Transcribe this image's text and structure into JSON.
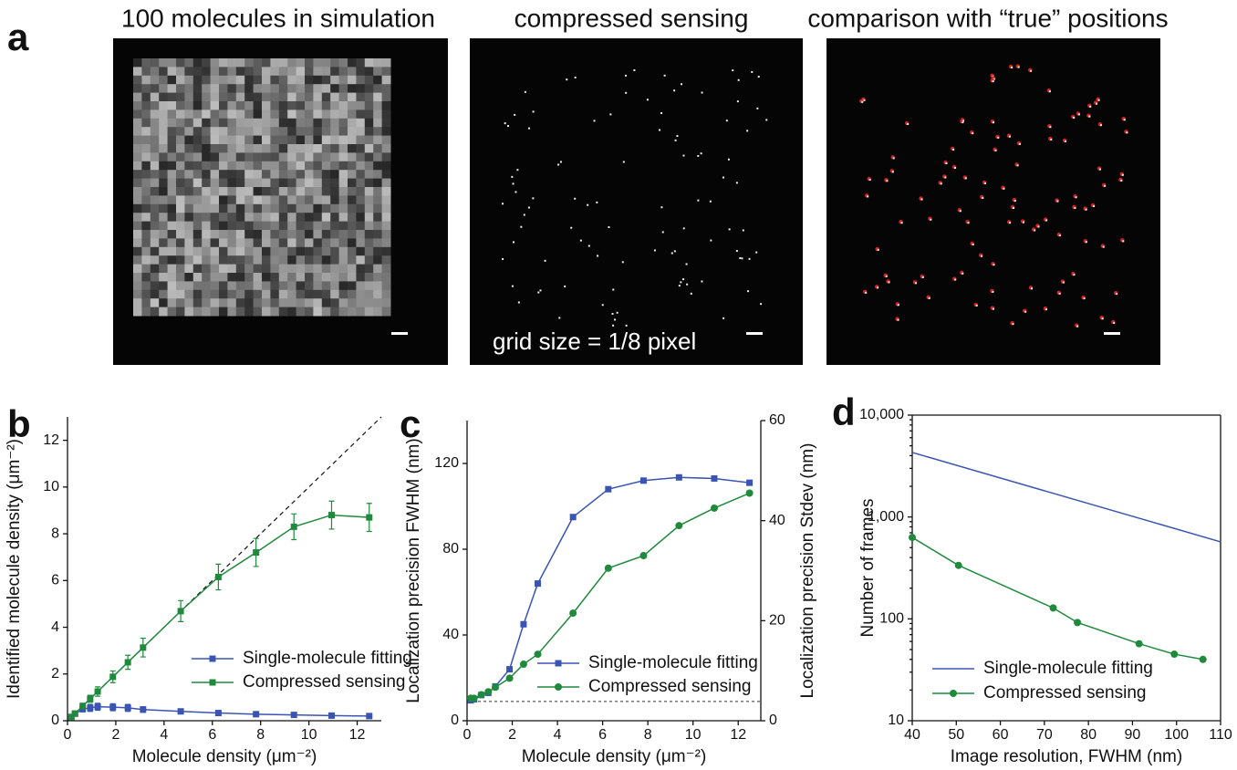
{
  "panel_labels": [
    "a",
    "b",
    "c",
    "d"
  ],
  "images": [
    {
      "title": "100 molecules in simulation"
    },
    {
      "title": "compressed sensing",
      "annotation": "grid size = 1/8 pixel"
    },
    {
      "title": "comparison with “true” positions"
    }
  ],
  "chart_data": [
    {
      "type": "line",
      "xlabel": "Molecule density (μm⁻²)",
      "ylabel": "Identified molecule density (μm⁻²)",
      "x": [
        0.16,
        0.31,
        0.63,
        0.94,
        1.25,
        1.88,
        2.5,
        3.13,
        4.69,
        6.25,
        7.81,
        9.38,
        10.94,
        12.5
      ],
      "xlim": [
        0,
        13
      ],
      "xticks": [
        0,
        2,
        4,
        6,
        8,
        10,
        12
      ],
      "ylim": [
        0,
        13
      ],
      "yticks": [
        0,
        2,
        4,
        6,
        8,
        10,
        12
      ],
      "legend": "lower right",
      "series": [
        {
          "name": "Single-molecule fitting",
          "color": "#3a54b4",
          "marker": "square",
          "values": [
            0.16,
            0.3,
            0.5,
            0.55,
            0.6,
            0.58,
            0.55,
            0.48,
            0.4,
            0.33,
            0.28,
            0.25,
            0.22,
            0.2
          ],
          "errors": [
            0.05,
            0.08,
            0.12,
            0.15,
            0.15,
            0.15,
            0.15,
            0.12,
            0.1,
            0.08,
            0.06,
            0.05,
            0.05,
            0.05
          ]
        },
        {
          "name": "Compressed sensing",
          "color": "#1f8a3c",
          "marker": "square",
          "values": [
            0.16,
            0.31,
            0.63,
            0.94,
            1.25,
            1.88,
            2.5,
            3.13,
            4.69,
            6.15,
            7.2,
            8.3,
            8.8,
            8.7
          ],
          "errors": [
            0.05,
            0.08,
            0.12,
            0.15,
            0.2,
            0.25,
            0.3,
            0.4,
            0.45,
            0.55,
            0.6,
            0.55,
            0.6,
            0.6
          ]
        }
      ]
    },
    {
      "type": "line",
      "xlabel": "Molecule density (μm⁻²)",
      "ylabel": "Localization precision FWHM (nm)",
      "y2label": "Localization precision Stdev (nm)",
      "x": [
        0.16,
        0.31,
        0.63,
        0.94,
        1.25,
        1.88,
        2.5,
        3.13,
        4.69,
        6.25,
        7.81,
        9.38,
        10.94,
        12.5
      ],
      "xlim": [
        0,
        13
      ],
      "xticks": [
        0,
        2,
        4,
        6,
        8,
        10,
        12
      ],
      "ylim": [
        0,
        140
      ],
      "yticks": [
        0,
        40,
        80,
        120
      ],
      "y2lim": [
        0,
        60
      ],
      "y2ticks": [
        0,
        20,
        40,
        60
      ],
      "reference_y": 9,
      "legend": "lower right",
      "series": [
        {
          "name": "Single-molecule fitting",
          "color": "#3a54b4",
          "marker": "square",
          "values": [
            9.5,
            10,
            12,
            13,
            16,
            24,
            45,
            64,
            95,
            108,
            112,
            113.5,
            113,
            111
          ]
        },
        {
          "name": "Compressed sensing",
          "color": "#1f8a3c",
          "marker": "circle",
          "axis": "y2",
          "values": [
            4.5,
            4.5,
            5.2,
            5.8,
            6.7,
            8.5,
            11.3,
            13.3,
            21.5,
            30.5,
            33,
            39,
            42.5,
            45.5
          ]
        }
      ]
    },
    {
      "type": "line",
      "xlabel": "Image resolution, FWHM (nm)",
      "ylabel": "Number of frames",
      "xlim": [
        40,
        110
      ],
      "xticks": [
        40,
        50,
        60,
        70,
        80,
        90,
        100,
        110
      ],
      "ylim": [
        10,
        10000
      ],
      "ylog": true,
      "yticks": [
        10,
        100,
        {
          "value": 1000,
          "label": "1,000"
        },
        {
          "value": 10000,
          "label": "10,000"
        }
      ],
      "legend": "lower left",
      "series": [
        {
          "name": "Single-molecule fitting",
          "color": "#3a54b4",
          "marker": "none",
          "x": [
            40,
            110
          ],
          "values": [
            4300,
            570
          ]
        },
        {
          "name": "Compressed sensing",
          "color": "#1f8a3c",
          "marker": "circle",
          "x": [
            40,
            50.5,
            72,
            77.5,
            91.5,
            99.5,
            106
          ],
          "values": [
            630,
            335,
            128,
            92,
            57,
            45,
            40
          ]
        }
      ]
    }
  ]
}
